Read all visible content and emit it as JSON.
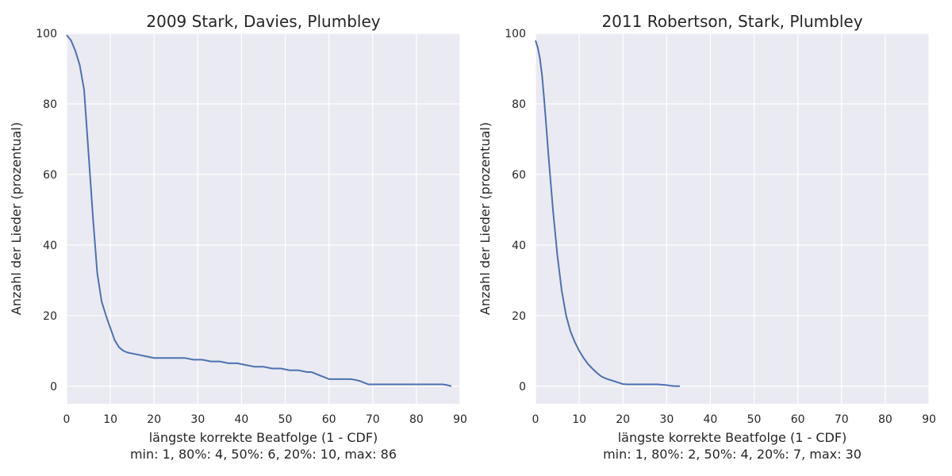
{
  "chart_data": [
    {
      "type": "line",
      "title": "2009 Stark, Davies, Plumbley",
      "xlabel": "längste korrekte Beatfolge (1 - CDF)",
      "stats": "min: 1,   80%: 4,   50%: 6,   20%: 10,   max: 86",
      "ylabel": "Anzahl der Lieder (prozentual)",
      "xlim": [
        0,
        90
      ],
      "ylim": [
        -5,
        100
      ],
      "xticks": [
        0,
        10,
        20,
        30,
        40,
        50,
        60,
        70,
        80,
        90
      ],
      "yticks": [
        0,
        20,
        40,
        60,
        80,
        100
      ],
      "grid": true,
      "series": [
        {
          "color": "#4c72b0",
          "x": [
            0,
            1,
            2,
            3,
            4,
            5,
            6,
            7,
            8,
            9,
            10,
            11,
            12,
            13,
            14,
            16,
            18,
            20,
            22,
            25,
            27,
            29,
            31,
            33,
            35,
            37,
            39,
            41,
            43,
            45,
            47,
            49,
            51,
            53,
            55,
            56,
            57,
            58,
            59,
            60,
            62,
            64,
            65,
            66,
            67,
            68,
            69,
            70,
            72,
            75,
            80,
            85,
            86,
            87,
            88
          ],
          "values": [
            99.5,
            98,
            95,
            91,
            84,
            66,
            48,
            32,
            24,
            20,
            16.5,
            13,
            11,
            10,
            9.5,
            9,
            8.5,
            8,
            8,
            8,
            8,
            7.5,
            7.5,
            7,
            7,
            6.5,
            6.5,
            6,
            5.5,
            5.5,
            5,
            5,
            4.5,
            4.5,
            4,
            4,
            3.5,
            3,
            2.5,
            2,
            2,
            2,
            2,
            1.8,
            1.5,
            1,
            0.5,
            0.5,
            0.5,
            0.5,
            0.5,
            0.5,
            0.5,
            0.3,
            0
          ]
        }
      ]
    },
    {
      "type": "line",
      "title": "2011 Robertson, Stark, Plumbley",
      "xlabel": "längste korrekte Beatfolge (1 - CDF)",
      "stats": "min: 1,   80%: 2,   50%: 4,   20%: 7,   max: 30",
      "ylabel": "Anzahl der Lieder (prozentual)",
      "xlim": [
        0,
        90
      ],
      "ylim": [
        -5,
        100
      ],
      "xticks": [
        0,
        10,
        20,
        30,
        40,
        50,
        60,
        70,
        80,
        90
      ],
      "yticks": [
        0,
        20,
        40,
        60,
        80,
        100
      ],
      "grid": true,
      "series": [
        {
          "color": "#4c72b0",
          "x": [
            0,
            0.5,
            1,
            1.5,
            2,
            2.5,
            3,
            4,
            5,
            6,
            7,
            8,
            9,
            10,
            11,
            12,
            13,
            14,
            15,
            16,
            17,
            18,
            19,
            20,
            21,
            23,
            25,
            27,
            28,
            29,
            30,
            31,
            32,
            33
          ],
          "values": [
            98,
            96,
            93,
            88,
            81,
            73,
            65,
            50,
            37,
            27,
            20,
            15.5,
            12.5,
            10,
            8,
            6.3,
            5,
            3.8,
            2.8,
            2.2,
            1.8,
            1.4,
            1,
            0.6,
            0.5,
            0.5,
            0.5,
            0.5,
            0.5,
            0.4,
            0.3,
            0.1,
            0,
            0
          ]
        }
      ]
    }
  ]
}
